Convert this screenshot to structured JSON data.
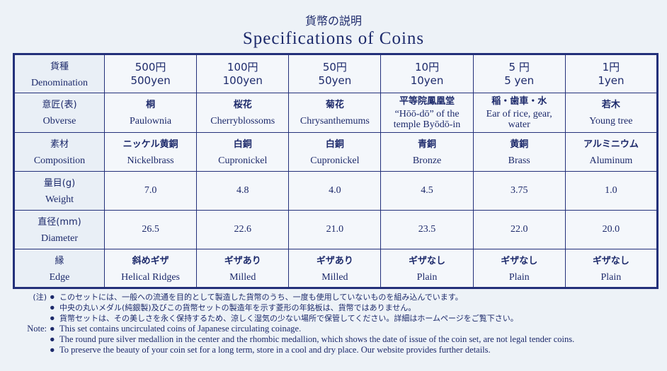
{
  "title_ja": "貨幣の説明",
  "title_en": "Specifications of Coins",
  "rows": [
    {
      "ja": "貨種",
      "en": "Denomination",
      "type": "denom",
      "cells": [
        [
          "500円",
          "500yen"
        ],
        [
          "100円",
          "100yen"
        ],
        [
          "50円",
          "50yen"
        ],
        [
          "10円",
          "10yen"
        ],
        [
          "5 円",
          "5 yen"
        ],
        [
          "1円",
          "1yen"
        ]
      ]
    },
    {
      "ja": "意匠(表)",
      "en": "Obverse",
      "cells": [
        [
          "桐",
          "Paulownia"
        ],
        [
          "桜花",
          "Cherryblossoms"
        ],
        [
          "菊花",
          "Chrysanthemums"
        ],
        [
          "平等院鳳凰堂",
          "“Hōō-dō” of the temple Byōdō-in"
        ],
        [
          "稲・歯車・水",
          "Ear of rice, gear, water"
        ],
        [
          "若木",
          "Young tree"
        ]
      ]
    },
    {
      "ja": "素材",
      "en": "Composition",
      "cells": [
        [
          "ニッケル黄銅",
          "Nickelbrass"
        ],
        [
          "白銅",
          "Cupronickel"
        ],
        [
          "白銅",
          "Cupronickel"
        ],
        [
          "青銅",
          "Bronze"
        ],
        [
          "黄銅",
          "Brass"
        ],
        [
          "アルミニウム",
          "Aluminum"
        ]
      ]
    },
    {
      "ja": "量目(g)",
      "en": "Weight",
      "type": "value",
      "cells": [
        "7.0",
        "4.8",
        "4.0",
        "4.5",
        "3.75",
        "1.0"
      ]
    },
    {
      "ja": "直径(mm)",
      "en": "Diameter",
      "type": "value",
      "cells": [
        "26.5",
        "22.6",
        "21.0",
        "23.5",
        "22.0",
        "20.0"
      ]
    },
    {
      "ja": "縁",
      "en": "Edge",
      "cells": [
        [
          "斜めギザ",
          "Helical Ridges"
        ],
        [
          "ギザあり",
          "Milled"
        ],
        [
          "ギザあり",
          "Milled"
        ],
        [
          "ギザなし",
          "Plain"
        ],
        [
          "ギザなし",
          "Plain"
        ],
        [
          "ギザなし",
          "Plain"
        ]
      ]
    }
  ],
  "notes_ja_label": "(注)",
  "notes_ja": [
    "このセットには、一般への流通を目的として製造した貨幣のうち、一度も使用していないものを組み込んでいます。",
    "中央の丸いメダル(純銀製)及びこの貨幣セットの製造年を示す菱形の年銘板は、貨幣ではありません。",
    "貨幣セットは、その美しさを永く保持するため、涼しく湿気の少ない場所で保管してください。詳細はホームページをご覧下さい。"
  ],
  "notes_en_label": "Note:",
  "notes_en": [
    "This set contains uncirculated coins of Japanese circulating coinage.",
    "The round pure silver medallion in the center and the rhombic medallion, which shows the date of issue of the coin set, are not legal tender coins.",
    "To preserve the beauty of your coin set for a long term, store in a cool and dry place. Our website provides further details."
  ]
}
